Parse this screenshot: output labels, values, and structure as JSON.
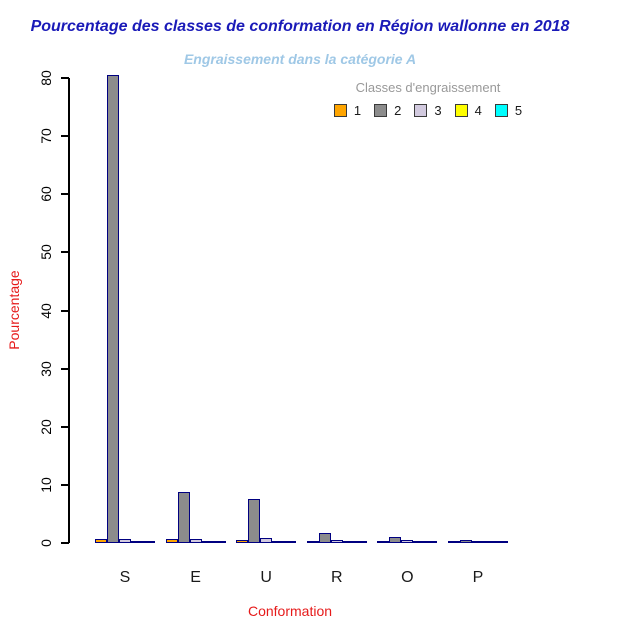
{
  "title": "Pourcentage des classes de conformation en Région wallonne en 2018",
  "subtitle": "Engraissement dans la catégorie A",
  "legend": {
    "title": "Classes d'engraissement",
    "items": [
      {
        "label": "1",
        "color": "#FFA500"
      },
      {
        "label": "2",
        "color": "#8C8C8C"
      },
      {
        "label": "3",
        "color": "#D2CADF"
      },
      {
        "label": "4",
        "color": "#FFFF00"
      },
      {
        "label": "5",
        "color": "#00FFFF"
      }
    ]
  },
  "axes": {
    "xlabel": "Conformation",
    "ylabel": "Pourcentage"
  },
  "colors": {
    "title": "#1A1AB8",
    "subtitle": "#9FC8E6",
    "axis_titles": "#E61A1A",
    "legend_title": "#999999",
    "bar_border": "#000080",
    "axis": "#000000"
  },
  "chart_data": {
    "type": "bar",
    "grouped": true,
    "title": "Pourcentage des classes de conformation en Région wallonne en 2018",
    "subtitle": "Engraissement dans la catégorie A",
    "xlabel": "Conformation",
    "ylabel": "Pourcentage",
    "legend_title": "Classes d'engraissement",
    "legend_position": "top-right",
    "grid": false,
    "categories": [
      "S",
      "E",
      "U",
      "R",
      "O",
      "P"
    ],
    "series": [
      {
        "name": "1",
        "color": "#FFA500",
        "values": [
          0.4,
          0.35,
          0.15,
          0.08,
          0.05,
          0.03
        ]
      },
      {
        "name": "2",
        "color": "#8C8C8C",
        "values": [
          80.2,
          8.5,
          7.3,
          1.3,
          0.65,
          0.15
        ]
      },
      {
        "name": "3",
        "color": "#D2CADF",
        "values": [
          0.3,
          0.3,
          0.45,
          0.2,
          0.1,
          0.05
        ]
      },
      {
        "name": "4",
        "color": "#FFFF00",
        "values": [
          0.05,
          0.05,
          0.05,
          0.03,
          0.02,
          0.01
        ]
      },
      {
        "name": "5",
        "color": "#00FFFF",
        "values": [
          0.03,
          0.03,
          0.03,
          0.02,
          0.01,
          0.01
        ]
      }
    ],
    "ylim": [
      0,
      80
    ],
    "yticks": [
      0,
      10,
      20,
      30,
      40,
      50,
      60,
      70,
      80
    ]
  }
}
